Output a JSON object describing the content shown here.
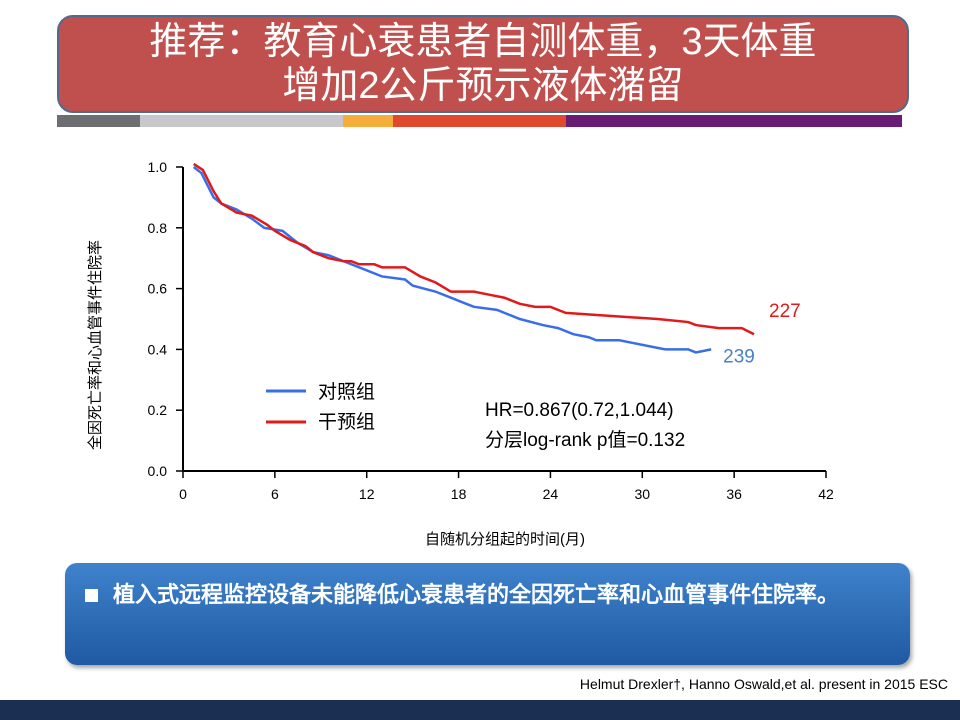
{
  "title": {
    "line1": "推荐：教育心衰患者自测体重，3天体重",
    "line2": "增加2公斤预示液体潴留"
  },
  "stripe_colors": [
    "#6d6e71",
    "#c8c8cc",
    "#c8c8cc",
    "#f5ae3b",
    "#e0492d",
    "#6a1c74"
  ],
  "chart_data": {
    "type": "line",
    "xlabel": "自随机分组起的时间(月)",
    "ylabel": "全因死亡率和心血管事件住院率",
    "xlim": [
      0,
      42
    ],
    "ylim": [
      0,
      1.0
    ],
    "xticks": [
      0,
      6,
      12,
      18,
      24,
      30,
      36,
      42
    ],
    "yticks": [
      "0.0",
      "0.2",
      "0.4",
      "0.6",
      "0.8",
      "1.0"
    ],
    "series": [
      {
        "name": "对照组",
        "color": "#3a6ee8",
        "end_label": "239",
        "end_label_color": "#4a7fc1",
        "x": [
          0.7,
          1.2,
          2,
          2.5,
          3.5,
          4.5,
          5.3,
          6.5,
          7.5,
          8.5,
          9.5,
          10.5,
          11.5,
          13,
          14.5,
          15,
          16.5,
          17.5,
          18.5,
          19,
          20.5,
          21.5,
          22,
          23.5,
          24.5,
          25.5,
          26.5,
          27,
          28.5,
          29.5,
          30.5,
          31.5,
          33,
          33.5,
          34.5
        ],
        "y": [
          1.0,
          0.98,
          0.9,
          0.88,
          0.86,
          0.83,
          0.8,
          0.79,
          0.75,
          0.72,
          0.71,
          0.69,
          0.67,
          0.64,
          0.63,
          0.61,
          0.59,
          0.57,
          0.55,
          0.54,
          0.53,
          0.51,
          0.5,
          0.48,
          0.47,
          0.45,
          0.44,
          0.43,
          0.43,
          0.42,
          0.41,
          0.4,
          0.4,
          0.39,
          0.4
        ]
      },
      {
        "name": "干预组",
        "color": "#e01a1a",
        "end_label": "227",
        "end_label_color": "#e01a1a",
        "x": [
          0.7,
          1.3,
          2,
          2.5,
          3.5,
          4.5,
          5.5,
          6,
          7,
          8,
          8.5,
          9.5,
          10.5,
          11,
          11.5,
          12.5,
          13,
          14.5,
          15.5,
          16.5,
          17.5,
          19,
          20,
          21,
          22,
          23,
          24,
          25,
          28,
          31,
          33,
          33.5,
          35,
          36.5,
          37.3
        ],
        "y": [
          1.01,
          0.99,
          0.92,
          0.88,
          0.85,
          0.84,
          0.81,
          0.79,
          0.76,
          0.74,
          0.72,
          0.7,
          0.69,
          0.69,
          0.68,
          0.68,
          0.67,
          0.67,
          0.64,
          0.62,
          0.59,
          0.59,
          0.58,
          0.57,
          0.55,
          0.54,
          0.54,
          0.52,
          0.51,
          0.5,
          0.49,
          0.48,
          0.47,
          0.47,
          0.45
        ]
      }
    ],
    "annotations": [
      "HR=0.867(0.72,1.044)",
      "分层log-rank p值=0.132"
    ],
    "legend_position": "lower-left"
  },
  "callout": {
    "text": "植入式远程监控设备未能降低心衰患者的全因死亡率和心血管事件住院率。"
  },
  "citation": "Helmut Drexler†, Hanno Oswald,et al. present in 2015 ESC"
}
